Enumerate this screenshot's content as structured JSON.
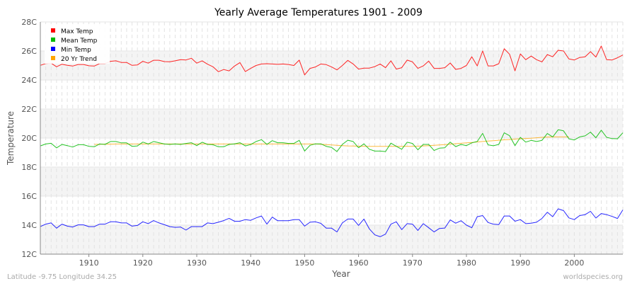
{
  "chart_data": {
    "type": "line",
    "title": "Yearly Average Temperatures 1901 - 2009",
    "xlabel": "Year",
    "ylabel": "Temperature",
    "xlim": [
      1901,
      2009
    ],
    "ylim": [
      12,
      28
    ],
    "x_ticks": [
      1910,
      1920,
      1930,
      1940,
      1950,
      1960,
      1970,
      1980,
      1990,
      2000
    ],
    "y_ticks": [
      "12C",
      "14C",
      "16C",
      "18C",
      "20C",
      "22C",
      "24C",
      "26C",
      "28C"
    ],
    "y_tick_values": [
      12,
      14,
      16,
      18,
      20,
      22,
      24,
      26,
      28
    ],
    "grid": true,
    "legend_placement": "top-left",
    "series": [
      {
        "name": "Max Temp",
        "color": "#ff0000",
        "start_year": 1901,
        "values": [
          25.01,
          25.13,
          25.16,
          24.91,
          25.09,
          25.01,
          24.96,
          25.07,
          25.07,
          24.98,
          24.96,
          25.13,
          25.13,
          25.29,
          25.32,
          25.21,
          25.21,
          25.01,
          25.04,
          25.29,
          25.16,
          25.36,
          25.36,
          25.27,
          25.26,
          25.32,
          25.4,
          25.38,
          25.5,
          25.16,
          25.32,
          25.09,
          24.91,
          24.57,
          24.72,
          24.63,
          24.96,
          25.2,
          24.58,
          24.8,
          25.0,
          25.1,
          25.12,
          25.1,
          25.08,
          25.1,
          25.07,
          25.0,
          25.37,
          24.35,
          24.8,
          24.9,
          25.1,
          25.06,
          24.9,
          24.7,
          25.0,
          25.35,
          25.1,
          24.75,
          24.82,
          24.82,
          24.92,
          25.1,
          24.85,
          25.32,
          24.75,
          24.85,
          25.37,
          25.25,
          24.8,
          24.97,
          25.3,
          24.8,
          24.8,
          24.85,
          25.17,
          24.73,
          24.8,
          25.0,
          25.6,
          24.97,
          26.0,
          24.97,
          24.97,
          25.12,
          26.15,
          25.77,
          24.63,
          25.8,
          25.4,
          25.65,
          25.4,
          25.25,
          25.75,
          25.6,
          26.05,
          26.0,
          25.45,
          25.38,
          25.55,
          25.6,
          25.95,
          25.58,
          26.34,
          25.4,
          25.38,
          25.53,
          25.72
        ]
      },
      {
        "name": "Mean Temp",
        "color": "#00bb00",
        "start_year": 1901,
        "values": [
          19.46,
          19.59,
          19.64,
          19.32,
          19.56,
          19.48,
          19.38,
          19.54,
          19.54,
          19.43,
          19.4,
          19.59,
          19.56,
          19.76,
          19.76,
          19.67,
          19.67,
          19.43,
          19.46,
          19.72,
          19.59,
          19.76,
          19.68,
          19.59,
          19.56,
          19.59,
          19.56,
          19.63,
          19.68,
          19.48,
          19.71,
          19.56,
          19.54,
          19.4,
          19.4,
          19.56,
          19.6,
          19.68,
          19.46,
          19.55,
          19.76,
          19.89,
          19.56,
          19.82,
          19.68,
          19.68,
          19.63,
          19.63,
          19.84,
          19.1,
          19.5,
          19.6,
          19.6,
          19.43,
          19.35,
          19.07,
          19.56,
          19.85,
          19.76,
          19.33,
          19.6,
          19.23,
          19.1,
          19.1,
          19.07,
          19.65,
          19.43,
          19.23,
          19.71,
          19.63,
          19.19,
          19.56,
          19.56,
          19.14,
          19.3,
          19.33,
          19.72,
          19.41,
          19.56,
          19.48,
          19.67,
          19.76,
          20.32,
          19.53,
          19.47,
          19.56,
          20.36,
          20.16,
          19.48,
          20.05,
          19.72,
          19.84,
          19.76,
          19.84,
          20.31,
          20.08,
          20.57,
          20.5,
          19.95,
          19.87,
          20.08,
          20.15,
          20.41,
          20.02,
          20.54,
          20.05,
          19.96,
          19.95,
          20.36
        ]
      },
      {
        "name": "Min Temp",
        "color": "#0000ff",
        "start_year": 1901,
        "values": [
          13.9,
          14.07,
          14.15,
          13.79,
          14.07,
          13.93,
          13.87,
          14.02,
          14.02,
          13.9,
          13.9,
          14.07,
          14.07,
          14.23,
          14.23,
          14.15,
          14.15,
          13.93,
          13.98,
          14.23,
          14.1,
          14.31,
          14.15,
          14.03,
          13.9,
          13.85,
          13.87,
          13.66,
          13.9,
          13.9,
          13.9,
          14.15,
          14.1,
          14.2,
          14.31,
          14.47,
          14.27,
          14.27,
          14.38,
          14.33,
          14.5,
          14.63,
          14.07,
          14.55,
          14.3,
          14.3,
          14.3,
          14.38,
          14.38,
          13.93,
          14.2,
          14.23,
          14.12,
          13.79,
          13.79,
          13.53,
          14.15,
          14.42,
          14.42,
          13.98,
          14.42,
          13.74,
          13.33,
          13.2,
          13.38,
          14.07,
          14.23,
          13.69,
          14.1,
          14.07,
          13.63,
          14.1,
          13.82,
          13.53,
          13.77,
          13.8,
          14.36,
          14.13,
          14.3,
          14.0,
          13.82,
          14.58,
          14.66,
          14.18,
          14.07,
          14.04,
          14.63,
          14.63,
          14.27,
          14.38,
          14.1,
          14.13,
          14.2,
          14.46,
          14.89,
          14.58,
          15.12,
          15.0,
          14.5,
          14.38,
          14.66,
          14.72,
          14.95,
          14.49,
          14.8,
          14.72,
          14.6,
          14.46,
          15.05
        ]
      },
      {
        "name": "20 Yr Trend",
        "color": "#ffa500",
        "start_year": 1911,
        "values": [
          19.56,
          19.57,
          19.58,
          19.58,
          19.59,
          19.59,
          19.59,
          19.59,
          19.59,
          19.59,
          19.59,
          19.59,
          19.59,
          19.59,
          19.59,
          19.59,
          19.59,
          19.59,
          19.59,
          19.59,
          19.59,
          19.59,
          19.59,
          19.59,
          19.59,
          19.59,
          19.59,
          19.59,
          19.59,
          19.59,
          19.59,
          19.59,
          19.59,
          19.59,
          19.59,
          19.59,
          19.59,
          19.59,
          19.59,
          19.59,
          19.59,
          19.59,
          19.57,
          19.55,
          19.52,
          19.5,
          19.48,
          19.46,
          19.45,
          19.44,
          19.43,
          19.43,
          19.43,
          19.43,
          19.43,
          19.43,
          19.43,
          19.43,
          19.43,
          19.43,
          19.44,
          19.46,
          19.48,
          19.5,
          19.52,
          19.55,
          19.58,
          19.61,
          19.64,
          19.67,
          19.7,
          19.73,
          19.76,
          19.79,
          19.82,
          19.85,
          19.88,
          19.9,
          19.93,
          19.95,
          19.97,
          19.99,
          20.02,
          20.05,
          20.07,
          20.08,
          20.08,
          20.08,
          20.08
        ]
      }
    ]
  },
  "footer": {
    "location": "Latitude -9.75 Longitude 34.25",
    "source": "worldspecies.org"
  }
}
